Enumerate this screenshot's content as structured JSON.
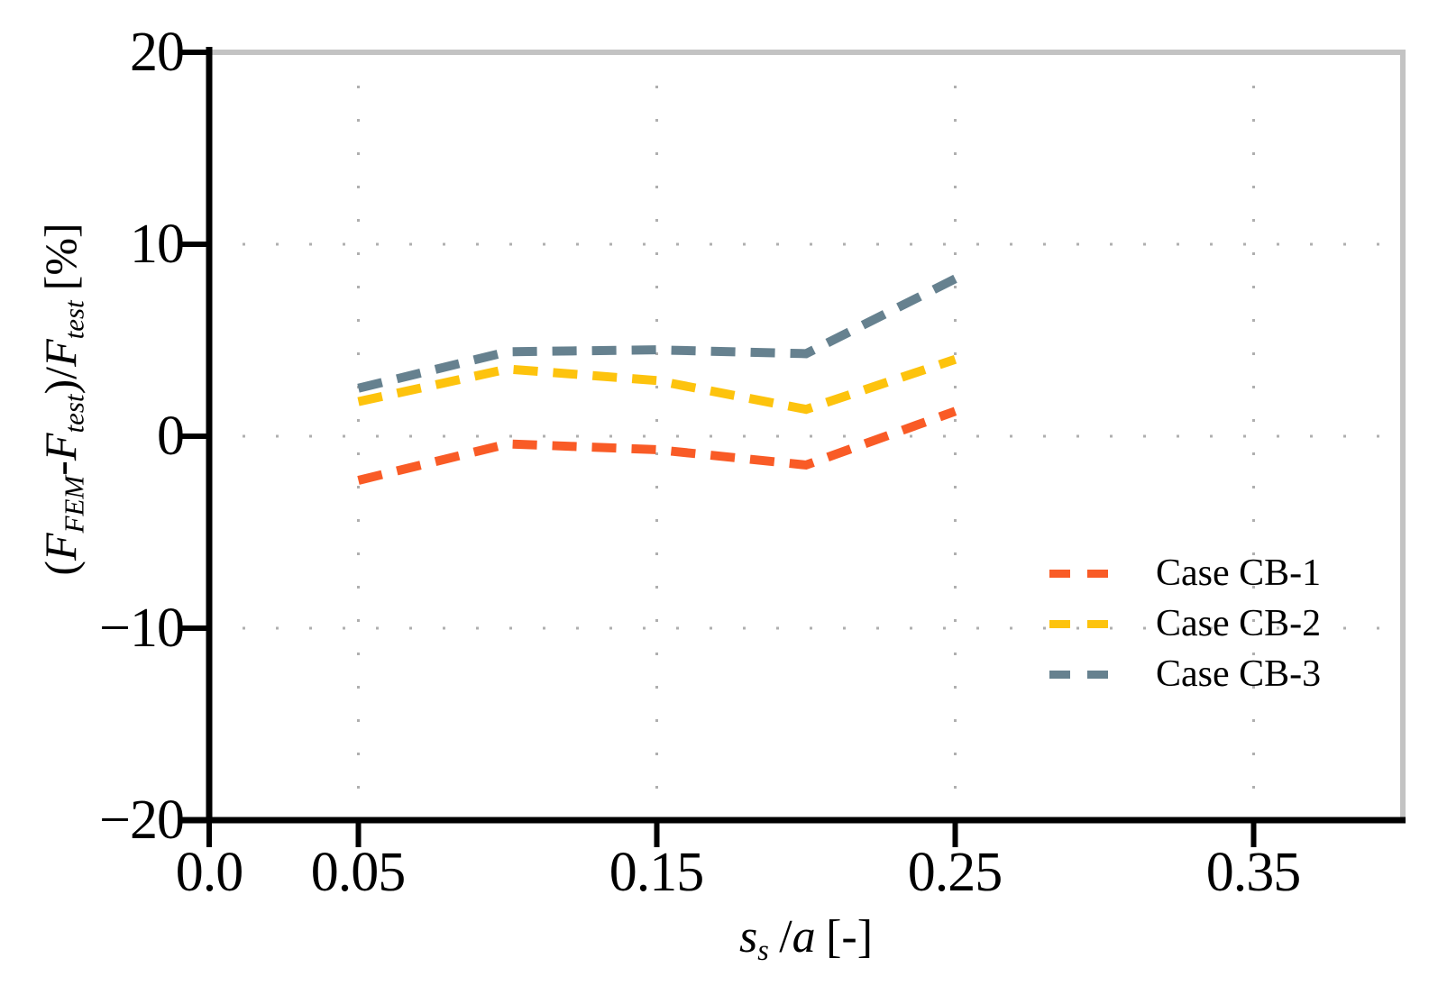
{
  "chart_data": {
    "type": "line",
    "title": "",
    "xlabel": "s_s/a [-]",
    "ylabel": "(F_FEM-F_test)/F_test [%]",
    "xlim": [
      0,
      0.4
    ],
    "ylim": [
      -20,
      20
    ],
    "grid": {
      "on": true,
      "style": "dotted",
      "color": "#AFAFAF",
      "x_values": [
        0.05,
        0.15,
        0.25,
        0.35
      ],
      "y_values": [
        10,
        0,
        -10
      ]
    },
    "frame": {
      "axis_color": "#000000",
      "top_right_color": "#C3C3C3"
    },
    "x": [
      0.05,
      0.1,
      0.15,
      0.2,
      0.25
    ],
    "series": [
      {
        "name": "Case CB-1",
        "color": "#F95B26",
        "style": "dashed",
        "values": [
          -2.3,
          -0.4,
          -0.7,
          -1.5,
          1.3
        ]
      },
      {
        "name": "Case CB-2",
        "color": "#FDC30D",
        "style": "dashed",
        "values": [
          1.8,
          3.5,
          2.9,
          1.4,
          4.0
        ]
      },
      {
        "name": "Case CB-3",
        "color": "#66818F",
        "style": "dashed",
        "values": [
          2.5,
          4.4,
          4.5,
          4.3,
          8.2
        ]
      }
    ],
    "xticks": {
      "values": [
        0.0,
        0.05,
        0.15,
        0.25,
        0.35
      ],
      "labels": [
        "0.0",
        "0.05",
        "0.15",
        "0.25",
        "0.35"
      ]
    },
    "yticks": {
      "values": [
        20,
        10,
        0,
        -10,
        -20
      ],
      "labels": [
        "20",
        "10",
        "0",
        "−10",
        "−20"
      ]
    },
    "legend": {
      "position": "center-right",
      "frame": false,
      "entries": [
        "Case CB-1",
        "Case CB-2",
        "Case CB-3"
      ]
    }
  },
  "labels": {
    "ylabel_parts": {
      "open": "(",
      "F1": "F",
      "sub1": "FEM",
      "minus": "-",
      "F2": "F",
      "sub2": "test",
      "close_slash": ")/",
      "F3": "F",
      "sub3": "test",
      "unit": "[%]"
    },
    "xlabel_parts": {
      "s": "s",
      "sub": "s",
      "slash": "/",
      "a": "a",
      "unit": "[-]"
    }
  }
}
